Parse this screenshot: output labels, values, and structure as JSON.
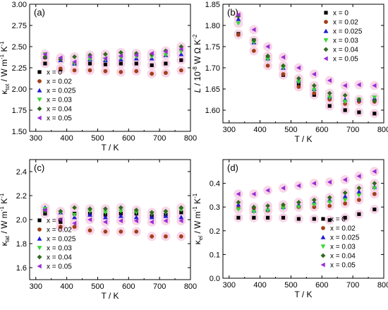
{
  "series_style": [
    {
      "color": "#000000",
      "marker": "square"
    },
    {
      "color": "#a0401a",
      "marker": "circle"
    },
    {
      "color": "#1c1cd6",
      "marker": "triangle-up"
    },
    {
      "color": "#36d836",
      "marker": "triangle-down"
    },
    {
      "color": "#2f6b1e",
      "marker": "diamond"
    },
    {
      "color": "#9a2ed6",
      "marker": "triangle-left"
    }
  ],
  "glow_color": "#f7cfe6",
  "chart_data": [
    {
      "type": "scatter",
      "panel_label": "(a)",
      "ylabel": "κtot / W m-1 K-1",
      "ylabel_main": "κ",
      "ylabel_sub": "tot",
      "ylabel_rest": " / W m",
      "ylabel_sup1": "-1",
      "ylabel_mid": " K",
      "ylabel_sup2": "-1",
      "xlabel": "T / K",
      "xlim": [
        280,
        800
      ],
      "ylim": [
        1.5,
        3.0
      ],
      "xticks": [
        300,
        400,
        500,
        600,
        700,
        800
      ],
      "yticks": [
        1.5,
        1.75,
        2.0,
        2.25,
        2.5,
        2.75,
        3.0
      ],
      "ytick_labels": [
        "1.50",
        "1.75",
        "2.00",
        "2.25",
        "2.50",
        "2.75",
        "3.00"
      ],
      "legend_position": "bottom-left",
      "x": [
        330,
        380,
        425,
        475,
        525,
        575,
        625,
        675,
        720,
        770
      ],
      "series": [
        {
          "name": "x = 0",
          "values": [
            2.3,
            2.23,
            2.3,
            2.3,
            2.29,
            2.3,
            2.3,
            2.28,
            2.3,
            2.34
          ]
        },
        {
          "name": "x = 0.02",
          "values": [
            2.37,
            2.24,
            2.22,
            2.22,
            2.21,
            2.2,
            2.21,
            2.18,
            2.19,
            2.22
          ]
        },
        {
          "name": "x = 0.025",
          "values": [
            2.38,
            2.34,
            2.3,
            2.35,
            2.34,
            2.35,
            2.36,
            2.36,
            2.4,
            2.41
          ]
        },
        {
          "name": "x = 0.03",
          "values": [
            2.41,
            2.35,
            2.3,
            2.35,
            2.35,
            2.37,
            2.38,
            2.38,
            2.4,
            2.44
          ]
        },
        {
          "name": "x = 0.04",
          "values": [
            2.38,
            2.35,
            2.38,
            2.4,
            2.41,
            2.43,
            2.42,
            2.41,
            2.45,
            2.5
          ]
        },
        {
          "name": "x = 0.05",
          "values": [
            2.41,
            2.37,
            2.32,
            2.38,
            2.36,
            2.39,
            2.4,
            2.42,
            2.44,
            2.47
          ]
        }
      ]
    },
    {
      "type": "scatter",
      "panel_label": "(b)",
      "ylabel": "L / 10-8 W Ω K-2",
      "ylabel_main": "L",
      "ylabel_rest": " / 10",
      "ylabel_sup1": "-8",
      "ylabel_mid": " W Ω K",
      "ylabel_sup2": "-2",
      "xlabel": "T / K",
      "xlim": [
        280,
        800
      ],
      "ylim": [
        1.57,
        1.85
      ],
      "xticks": [
        300,
        400,
        500,
        600,
        700,
        800
      ],
      "yticks": [
        1.6,
        1.65,
        1.7,
        1.75,
        1.8,
        1.85
      ],
      "ytick_labels": [
        "1.60",
        "1.65",
        "1.70",
        "1.75",
        "1.80",
        "1.85"
      ],
      "legend_position": "top-right",
      "x": [
        330,
        380,
        425,
        475,
        525,
        575,
        625,
        675,
        720,
        770
      ],
      "series": [
        {
          "name": "x = 0",
          "values": [
            1.78,
            1.765,
            1.725,
            1.683,
            1.66,
            1.636,
            1.61,
            1.6,
            1.595,
            1.592
          ]
        },
        {
          "name": "x = 0.02",
          "values": [
            1.778,
            1.74,
            1.705,
            1.685,
            1.655,
            1.64,
            1.625,
            1.615,
            1.62,
            1.62
          ]
        },
        {
          "name": "x = 0.025",
          "values": [
            1.815,
            1.76,
            1.722,
            1.7,
            1.67,
            1.65,
            1.632,
            1.625,
            1.625,
            1.628
          ]
        },
        {
          "name": "x = 0.03",
          "values": [
            1.805,
            1.76,
            1.72,
            1.7,
            1.667,
            1.648,
            1.63,
            1.62,
            1.625,
            1.63
          ]
        },
        {
          "name": "x = 0.04",
          "values": [
            1.822,
            1.765,
            1.728,
            1.705,
            1.675,
            1.658,
            1.64,
            1.635,
            1.625,
            1.622
          ]
        },
        {
          "name": "x = 0.05",
          "values": [
            1.825,
            1.79,
            1.75,
            1.725,
            1.7,
            1.685,
            1.67,
            1.658,
            1.66,
            1.658
          ]
        }
      ]
    },
    {
      "type": "scatter",
      "panel_label": "(c)",
      "ylabel": "κlat / W m-1 K-1",
      "ylabel_main": "κ",
      "ylabel_sub": "lat",
      "ylabel_rest": " / W m",
      "ylabel_sup1": "-1",
      "ylabel_mid": " K",
      "ylabel_sup2": "-1",
      "xlabel": "T / K",
      "xlim": [
        280,
        800
      ],
      "ylim": [
        1.5,
        2.5
      ],
      "xticks": [
        300,
        400,
        500,
        600,
        700,
        800
      ],
      "yticks": [
        1.6,
        1.8,
        2.0,
        2.2,
        2.4
      ],
      "ytick_labels": [
        "1.6",
        "1.8",
        "2.0",
        "2.2",
        "2.4"
      ],
      "legend_position": "bottom-left",
      "x": [
        330,
        380,
        425,
        475,
        525,
        575,
        625,
        675,
        720,
        770
      ],
      "series": [
        {
          "name": "x = 0",
          "values": [
            2.05,
            1.98,
            2.05,
            2.05,
            2.04,
            2.05,
            2.05,
            2.03,
            2.04,
            2.06
          ]
        },
        {
          "name": "x = 0.02",
          "values": [
            2.08,
            1.94,
            1.94,
            1.91,
            1.9,
            1.9,
            1.9,
            1.86,
            1.86,
            1.86
          ]
        },
        {
          "name": "x = 0.025",
          "values": [
            2.1,
            2.06,
            2.02,
            2.04,
            2.02,
            2.03,
            2.02,
            2.02,
            2.03,
            2.02
          ]
        },
        {
          "name": "x = 0.03",
          "values": [
            2.09,
            2.06,
            2.04,
            2.07,
            2.06,
            2.07,
            2.06,
            2.05,
            2.06,
            2.08
          ]
        },
        {
          "name": "x = 0.04",
          "values": [
            2.07,
            2.07,
            2.1,
            2.09,
            2.09,
            2.1,
            2.08,
            2.06,
            2.07,
            2.1
          ]
        },
        {
          "name": "x = 0.05",
          "values": [
            2.08,
            2.0,
            1.97,
            2.0,
            1.98,
            1.99,
            1.99,
            1.98,
            1.99,
            1.99
          ]
        }
      ]
    },
    {
      "type": "scatter",
      "panel_label": "(d)",
      "ylabel": "κel / W m-1 K-1",
      "ylabel_main": "κ",
      "ylabel_sub": "el",
      "ylabel_rest": " / W m",
      "ylabel_sup1": "-1",
      "ylabel_mid": " K",
      "ylabel_sup2": "-1",
      "xlabel": "T / K",
      "xlim": [
        280,
        800
      ],
      "ylim": [
        0.0,
        0.5
      ],
      "xticks": [
        300,
        400,
        500,
        600,
        700,
        800
      ],
      "yticks": [
        0.0,
        0.1,
        0.2,
        0.3,
        0.4
      ],
      "ytick_labels": [
        "0.0",
        "0.1",
        "0.2",
        "0.3",
        "0.4"
      ],
      "legend_position": "bottom-right",
      "x": [
        330,
        380,
        425,
        475,
        525,
        575,
        625,
        675,
        720,
        770
      ],
      "series": [
        {
          "name": "x = 0",
          "values": [
            0.255,
            0.255,
            0.255,
            0.255,
            0.25,
            0.25,
            0.245,
            0.255,
            0.27,
            0.29
          ]
        },
        {
          "name": "x = 0.02",
          "values": [
            0.295,
            0.295,
            0.285,
            0.3,
            0.3,
            0.3,
            0.305,
            0.315,
            0.33,
            0.355
          ]
        },
        {
          "name": "x = 0.025",
          "values": [
            0.31,
            0.285,
            0.29,
            0.3,
            0.31,
            0.32,
            0.33,
            0.345,
            0.365,
            0.385
          ]
        },
        {
          "name": "x = 0.03",
          "values": [
            0.29,
            0.28,
            0.285,
            0.295,
            0.3,
            0.31,
            0.32,
            0.33,
            0.35,
            0.38
          ]
        },
        {
          "name": "x = 0.04",
          "values": [
            0.32,
            0.3,
            0.305,
            0.31,
            0.32,
            0.33,
            0.34,
            0.36,
            0.38,
            0.4
          ]
        },
        {
          "name": "x = 0.05",
          "values": [
            0.355,
            0.355,
            0.37,
            0.38,
            0.39,
            0.4,
            0.405,
            0.415,
            0.43,
            0.45
          ]
        }
      ]
    }
  ]
}
